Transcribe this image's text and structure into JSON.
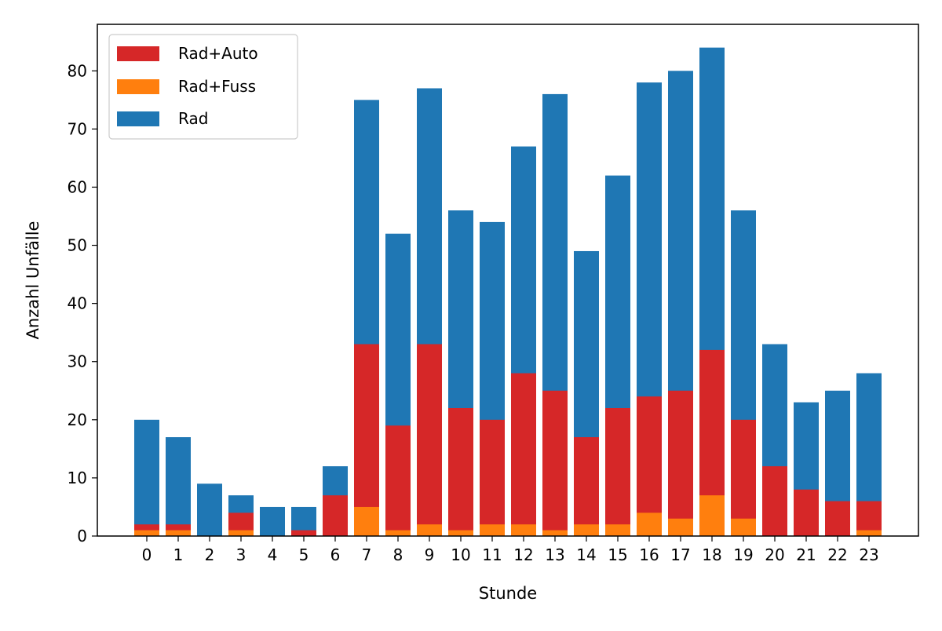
{
  "chart_data": {
    "type": "bar",
    "stacked": true,
    "title": "",
    "xlabel": "Stunde",
    "ylabel": "Anzahl Unfälle",
    "categories": [
      "0",
      "1",
      "2",
      "3",
      "4",
      "5",
      "6",
      "7",
      "8",
      "9",
      "10",
      "11",
      "12",
      "13",
      "14",
      "15",
      "16",
      "17",
      "18",
      "19",
      "20",
      "21",
      "22",
      "23"
    ],
    "ylim": [
      0,
      88
    ],
    "yticks": [
      "0",
      "10",
      "20",
      "30",
      "40",
      "50",
      "60",
      "70",
      "80"
    ],
    "grid": false,
    "legend_position": "top-left",
    "legend": [
      {
        "name": "Rad+Auto",
        "color": "#d62728"
      },
      {
        "name": "Rad+Fuss",
        "color": "#ff7f0e"
      },
      {
        "name": "Rad",
        "color": "#1f77b4"
      }
    ],
    "totals": [
      20,
      17,
      9,
      7,
      5,
      5,
      12,
      75,
      52,
      77,
      56,
      54,
      67,
      76,
      49,
      62,
      78,
      80,
      84,
      56,
      33,
      23,
      25,
      28
    ],
    "rad_auto_top": [
      2,
      2,
      0,
      4,
      0,
      1,
      7,
      33,
      19,
      33,
      22,
      20,
      28,
      25,
      17,
      22,
      24,
      25,
      32,
      20,
      12,
      8,
      6,
      6
    ],
    "rad_fuss": [
      1,
      1,
      0,
      1,
      0,
      0,
      0,
      5,
      1,
      2,
      1,
      2,
      2,
      1,
      2,
      2,
      4,
      3,
      7,
      3,
      0,
      0,
      0,
      1
    ]
  }
}
